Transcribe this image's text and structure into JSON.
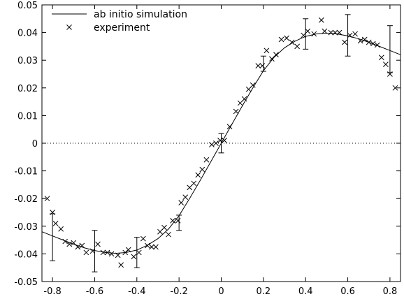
{
  "chart_data": {
    "type": "line",
    "title": "",
    "xlabel": "",
    "ylabel": "",
    "xlim": [
      -0.85,
      0.85
    ],
    "ylim": [
      -0.05,
      0.05
    ],
    "xticks": [
      -0.8,
      -0.6,
      -0.4,
      -0.2,
      0,
      0.2,
      0.4,
      0.6,
      0.8
    ],
    "xtick_labels": [
      "-0.8",
      "-0.6",
      "-0.4",
      "-0.2",
      "0",
      "0.2",
      "0.4",
      "0.6",
      "0.8"
    ],
    "yticks": [
      -0.05,
      -0.04,
      -0.03,
      -0.02,
      -0.01,
      0,
      0.01,
      0.02,
      0.03,
      0.04,
      0.05
    ],
    "ytick_labels": [
      "-0.05",
      "-0.04",
      "-0.03",
      "-0.02",
      "-0.01",
      "0",
      "0.01",
      "0.02",
      "0.03",
      "0.04",
      "0.05"
    ],
    "grid": false,
    "zero_line": "dotted",
    "legend_position": "top-left",
    "series": [
      {
        "name": "ab initio simulation",
        "style": "line",
        "x": [
          -0.85,
          -0.8,
          -0.75,
          -0.7,
          -0.65,
          -0.6,
          -0.55,
          -0.5,
          -0.45,
          -0.4,
          -0.35,
          -0.3,
          -0.25,
          -0.2,
          -0.15,
          -0.1,
          -0.05,
          0,
          0.05,
          0.1,
          0.15,
          0.2,
          0.25,
          0.3,
          0.35,
          0.4,
          0.45,
          0.5,
          0.55,
          0.6,
          0.65,
          0.7,
          0.75,
          0.8,
          0.85
        ],
        "y": [
          -0.032,
          -0.0335,
          -0.035,
          -0.0365,
          -0.0378,
          -0.0388,
          -0.0395,
          -0.0398,
          -0.0395,
          -0.0386,
          -0.0369,
          -0.0345,
          -0.031,
          -0.0262,
          -0.02,
          -0.0135,
          -0.0068,
          0,
          0.0068,
          0.0135,
          0.02,
          0.0262,
          0.031,
          0.0345,
          0.0369,
          0.0386,
          0.0395,
          0.0398,
          0.0395,
          0.0388,
          0.0378,
          0.0365,
          0.035,
          0.0335,
          0.032
        ]
      },
      {
        "name": "experiment",
        "style": "x-markers",
        "points": [
          [
            -0.825,
            -0.02
          ],
          [
            -0.8,
            -0.025
          ],
          [
            -0.785,
            -0.029
          ],
          [
            -0.76,
            -0.031
          ],
          [
            -0.74,
            -0.0355
          ],
          [
            -0.72,
            -0.0365
          ],
          [
            -0.7,
            -0.036
          ],
          [
            -0.68,
            -0.0375
          ],
          [
            -0.66,
            -0.037
          ],
          [
            -0.64,
            -0.0395
          ],
          [
            -0.61,
            -0.039
          ],
          [
            -0.585,
            -0.0365
          ],
          [
            -0.56,
            -0.0395
          ],
          [
            -0.54,
            -0.0395
          ],
          [
            -0.52,
            -0.04
          ],
          [
            -0.49,
            -0.0405
          ],
          [
            -0.475,
            -0.044
          ],
          [
            -0.455,
            -0.0395
          ],
          [
            -0.44,
            -0.0385
          ],
          [
            -0.415,
            -0.041
          ],
          [
            -0.39,
            -0.0395
          ],
          [
            -0.37,
            -0.0345
          ],
          [
            -0.35,
            -0.037
          ],
          [
            -0.33,
            -0.0375
          ],
          [
            -0.31,
            -0.0375
          ],
          [
            -0.29,
            -0.032
          ],
          [
            -0.27,
            -0.0305
          ],
          [
            -0.25,
            -0.033
          ],
          [
            -0.23,
            -0.028
          ],
          [
            -0.205,
            -0.028
          ],
          [
            -0.19,
            -0.0215
          ],
          [
            -0.17,
            -0.0195
          ],
          [
            -0.15,
            -0.016
          ],
          [
            -0.13,
            -0.0145
          ],
          [
            -0.11,
            -0.0115
          ],
          [
            -0.09,
            -0.0095
          ],
          [
            -0.07,
            -0.006
          ],
          [
            -0.045,
            -0.0005
          ],
          [
            -0.025,
            0.0
          ],
          [
            -0.005,
            0.001
          ],
          [
            0.015,
            0.001
          ],
          [
            0.04,
            0.006
          ],
          [
            0.07,
            0.0115
          ],
          [
            0.09,
            0.0145
          ],
          [
            0.11,
            0.016
          ],
          [
            0.13,
            0.0195
          ],
          [
            0.15,
            0.021
          ],
          [
            0.175,
            0.028
          ],
          [
            0.195,
            0.028
          ],
          [
            0.215,
            0.0335
          ],
          [
            0.24,
            0.0305
          ],
          [
            0.26,
            0.032
          ],
          [
            0.285,
            0.0375
          ],
          [
            0.31,
            0.038
          ],
          [
            0.335,
            0.0365
          ],
          [
            0.36,
            0.035
          ],
          [
            0.39,
            0.039
          ],
          [
            0.41,
            0.0405
          ],
          [
            0.44,
            0.0395
          ],
          [
            0.475,
            0.0445
          ],
          [
            0.49,
            0.0405
          ],
          [
            0.52,
            0.04
          ],
          [
            0.54,
            0.04
          ],
          [
            0.56,
            0.04
          ],
          [
            0.585,
            0.0365
          ],
          [
            0.61,
            0.039
          ],
          [
            0.635,
            0.0395
          ],
          [
            0.66,
            0.037
          ],
          [
            0.68,
            0.0375
          ],
          [
            0.7,
            0.0365
          ],
          [
            0.72,
            0.036
          ],
          [
            0.74,
            0.0355
          ],
          [
            0.76,
            0.031
          ],
          [
            0.78,
            0.0285
          ],
          [
            0.8,
            0.025
          ],
          [
            0.825,
            0.02
          ]
        ]
      }
    ],
    "error_bars": [
      {
        "x": -0.8,
        "y": -0.034,
        "low": -0.0425,
        "high": -0.0255
      },
      {
        "x": -0.6,
        "y": -0.039,
        "low": -0.0465,
        "high": -0.0315
      },
      {
        "x": -0.4,
        "y": -0.0395,
        "low": -0.045,
        "high": -0.034
      },
      {
        "x": -0.2,
        "y": -0.0285,
        "low": -0.0315,
        "high": -0.026
      },
      {
        "x": 0,
        "y": 0,
        "low": -0.0035,
        "high": 0.0035
      },
      {
        "x": 0.2,
        "y": 0.0285,
        "low": 0.026,
        "high": 0.0315
      },
      {
        "x": 0.4,
        "y": 0.0395,
        "low": 0.034,
        "high": 0.045
      },
      {
        "x": 0.6,
        "y": 0.039,
        "low": 0.0315,
        "high": 0.0465
      },
      {
        "x": 0.8,
        "y": 0.034,
        "low": 0.0255,
        "high": 0.0425
      }
    ]
  }
}
